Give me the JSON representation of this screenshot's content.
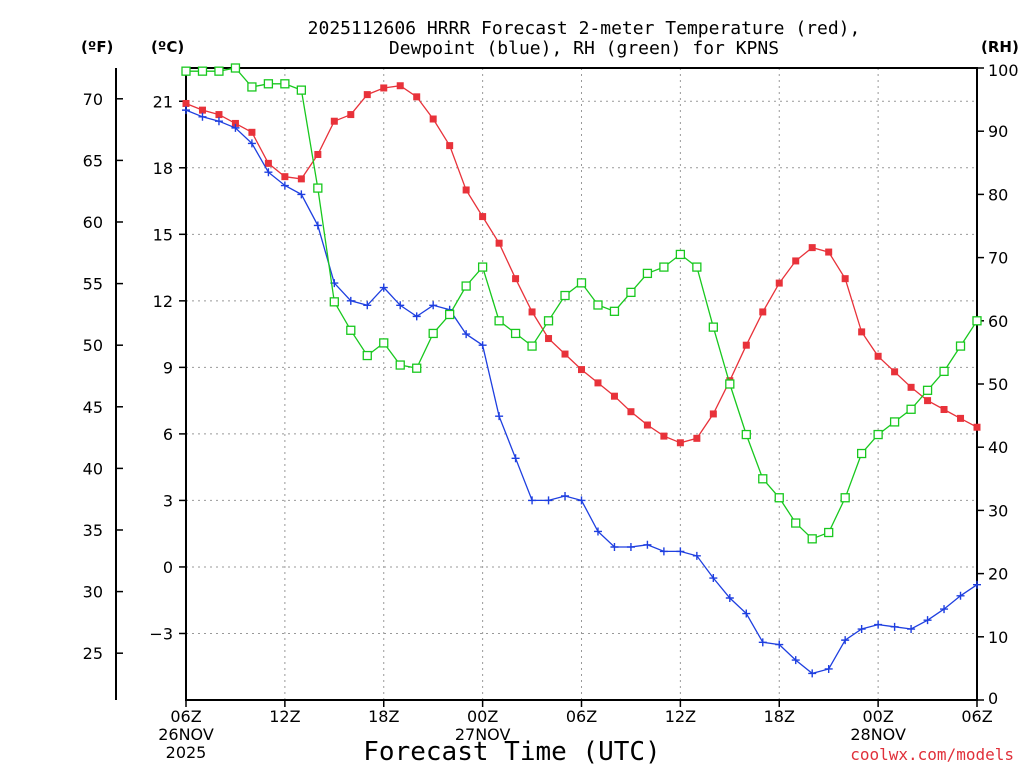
{
  "chart_data": {
    "type": "line",
    "title_line1": "2025112606 HRRR Forecast 2-meter Temperature (red),",
    "title_line2": "Dewpoint (blue), RH (green) for KPNS",
    "xlabel": "Forecast Time (UTC)",
    "watermark": "coolwx.com/models",
    "unit_left_f": "(ºF)",
    "unit_left_c": "(ºC)",
    "unit_right": "(RH)",
    "hours_range": [
      0,
      48
    ],
    "c_range": [
      -6,
      22.5
    ],
    "rh_range": [
      0,
      100
    ],
    "x_ticks": [
      {
        "h": 0,
        "label": "06Z"
      },
      {
        "h": 6,
        "label": "12Z"
      },
      {
        "h": 12,
        "label": "18Z"
      },
      {
        "h": 18,
        "label": "00Z"
      },
      {
        "h": 24,
        "label": "06Z"
      },
      {
        "h": 30,
        "label": "12Z"
      },
      {
        "h": 36,
        "label": "18Z"
      },
      {
        "h": 42,
        "label": "00Z"
      },
      {
        "h": 48,
        "label": "06Z"
      }
    ],
    "date_labels": [
      {
        "h": 0,
        "line1": "26NOV",
        "line2": "2025"
      },
      {
        "h": 18,
        "line1": "27NOV",
        "line2": ""
      },
      {
        "h": 42,
        "line1": "28NOV",
        "line2": ""
      }
    ],
    "c_ticks": [
      "21",
      "18",
      "15",
      "12",
      "9",
      "6",
      "3",
      "0",
      "−3"
    ],
    "c_tick_values": [
      21,
      18,
      15,
      12,
      9,
      6,
      3,
      0,
      -3
    ],
    "f_ticks": [
      "70",
      "65",
      "60",
      "55",
      "50",
      "45",
      "40",
      "35",
      "30",
      "25"
    ],
    "f_tick_values": [
      70,
      65,
      60,
      55,
      50,
      45,
      40,
      35,
      30,
      25
    ],
    "rh_ticks": [
      "0",
      "10",
      "20",
      "30",
      "40",
      "50",
      "60",
      "70",
      "80",
      "90",
      "100"
    ],
    "rh_tick_values": [
      0,
      10,
      20,
      30,
      40,
      50,
      60,
      70,
      80,
      90,
      100
    ],
    "colors": {
      "temperature": "#e8323a",
      "dewpoint": "#1e3fe0",
      "rh": "#18c81e",
      "watermark": "#e0303a"
    },
    "series": [
      {
        "name": "Temperature",
        "unit": "C",
        "marker": "filled-square",
        "values": [
          20.9,
          20.6,
          20.4,
          20.0,
          19.6,
          18.2,
          17.6,
          17.5,
          18.6,
          20.1,
          20.4,
          21.3,
          21.6,
          21.7,
          21.2,
          20.2,
          19.0,
          17.0,
          15.8,
          14.6,
          13.0,
          11.5,
          10.3,
          9.6,
          8.9,
          8.3,
          7.7,
          7.0,
          6.4,
          5.9,
          5.6,
          5.8,
          6.9,
          8.4,
          10.0,
          11.5,
          12.8,
          13.8,
          14.4,
          14.2,
          13.0,
          10.6,
          9.5,
          8.8,
          8.1,
          7.5,
          7.1,
          6.7,
          6.3
        ]
      },
      {
        "name": "Dewpoint",
        "unit": "C",
        "marker": "plus",
        "values": [
          20.6,
          20.3,
          20.1,
          19.8,
          19.1,
          17.8,
          17.2,
          16.8,
          15.4,
          12.8,
          12.0,
          11.8,
          12.6,
          11.8,
          11.3,
          11.8,
          11.6,
          10.5,
          10.0,
          6.8,
          4.9,
          3.0,
          3.0,
          3.2,
          3.0,
          1.6,
          0.9,
          0.9,
          1.0,
          0.7,
          0.7,
          0.5,
          -0.5,
          -1.4,
          -2.1,
          -3.4,
          -3.5,
          -4.2,
          -4.8,
          -4.6,
          -3.3,
          -2.8,
          -2.6,
          -2.7,
          -2.8,
          -2.4,
          -1.9,
          -1.3,
          -0.8
        ]
      },
      {
        "name": "RH",
        "unit": "%",
        "marker": "open-square",
        "values": [
          99.5,
          99.5,
          99.5,
          100,
          97,
          97.5,
          97.5,
          96.5,
          81,
          63,
          58.5,
          54.5,
          56.5,
          53,
          52.5,
          58,
          61,
          65.5,
          68.5,
          60,
          58,
          56,
          60,
          64,
          66,
          62.5,
          61.5,
          64.5,
          67.5,
          68.5,
          70.5,
          68.5,
          59,
          50,
          42,
          35,
          32,
          28,
          25.5,
          26.5,
          32,
          39,
          42,
          44,
          46,
          49,
          52,
          56,
          60
        ]
      }
    ]
  }
}
